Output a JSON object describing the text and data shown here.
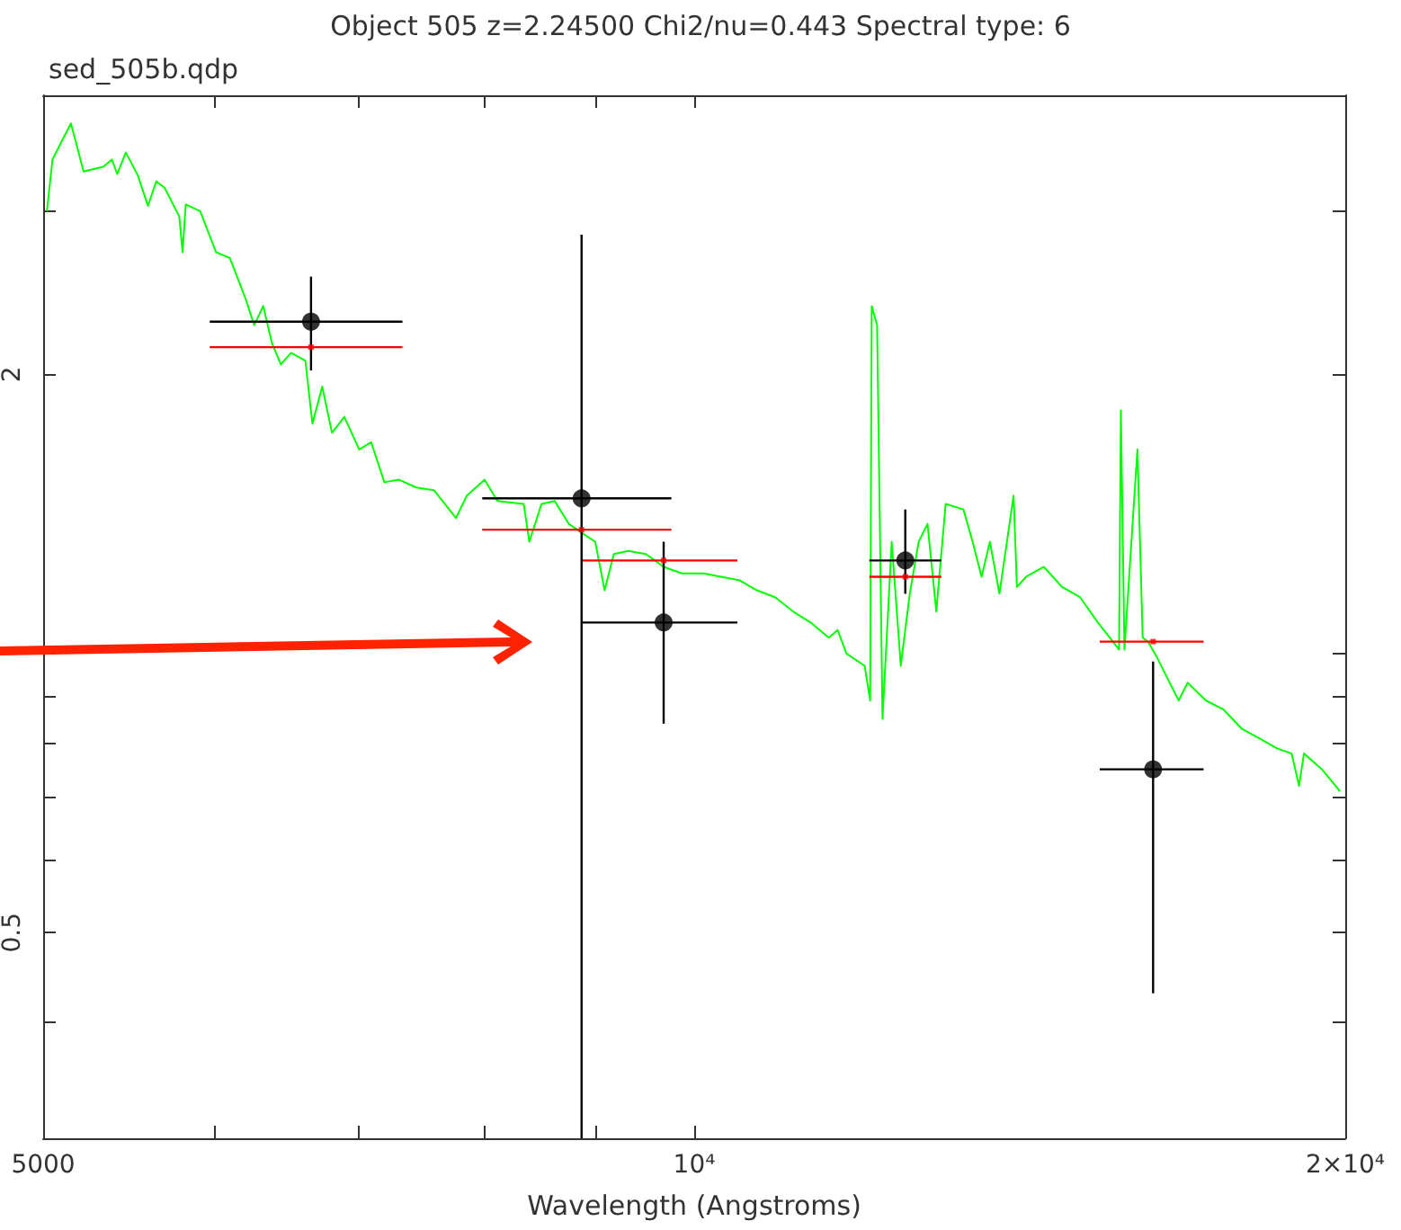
{
  "chart_data": {
    "type": "scatter",
    "title": "Object 505 z=2.24500 Chi2/nu=0.443 Spectral type: 6",
    "subtitle": "sed_505b.qdp",
    "xlabel": "Wavelength (Angstroms)",
    "log": "xy",
    "xlim": [
      5000,
      20000
    ],
    "xticks": [
      5000,
      {
        "value": 6000,
        "label": null
      },
      {
        "value": 7000,
        "label": null
      },
      {
        "value": 8000,
        "label": null
      },
      {
        "value": 9000,
        "label": null
      },
      {
        "value": 10000,
        "label": "10⁴"
      },
      {
        "value": 20000,
        "label": "2×10⁴"
      }
    ],
    "ylim": [
      0.3,
      4
    ],
    "yticks": [
      {
        "value": 0.4,
        "label": null
      },
      0.5,
      {
        "value": 0.6,
        "label": null
      },
      {
        "value": 0.7,
        "label": null
      },
      {
        "value": 0.8,
        "label": null
      },
      {
        "value": 0.9,
        "label": null
      },
      {
        "value": 1,
        "label": null
      },
      2,
      {
        "value": 3,
        "label": null
      }
    ],
    "series": [
      {
        "type": "line",
        "color": "#00ff00",
        "marker": "none",
        "x": [
          5020,
          5050,
          5100,
          5150,
          5220,
          5330,
          5380,
          5410,
          5460,
          5530,
          5590,
          5640,
          5690,
          5780,
          5800,
          5820,
          5910,
          6010,
          6100,
          6200,
          6260,
          6320,
          6380,
          6440,
          6510,
          6610,
          6660,
          6730,
          6800,
          6890,
          7000,
          7090,
          7190,
          7300,
          7440,
          7580,
          7760,
          7850,
          8000,
          8110,
          8340,
          8390,
          8500,
          8620,
          8750,
          8870,
          9000,
          9090,
          9180,
          9320,
          9500,
          9680,
          9870,
          10100,
          10290,
          10490,
          10690,
          10900,
          11110,
          11320,
          11540,
          11650,
          11760,
          11990,
          12060,
          12080,
          12150,
          12220,
          12340,
          12460,
          12580,
          12700,
          12820,
          12940,
          13070,
          13320,
          13450,
          13580,
          13700,
          13840,
          14050,
          14100,
          14240,
          14510,
          14650,
          14790,
          15080,
          15370,
          15720,
          15750,
          15810,
          16030,
          16120,
          16210,
          16370,
          16590,
          16750,
          16910,
          17240,
          17570,
          17910,
          18250,
          18600,
          18890,
          19040,
          19140,
          19510,
          19890
        ],
        "values": [
          3.0,
          3.41,
          3.57,
          3.73,
          3.31,
          3.35,
          3.41,
          3.29,
          3.47,
          3.28,
          3.04,
          3.23,
          3.18,
          2.96,
          2.71,
          3.05,
          3.0,
          2.71,
          2.67,
          2.42,
          2.26,
          2.37,
          2.16,
          2.05,
          2.11,
          2.07,
          1.77,
          1.94,
          1.73,
          1.8,
          1.66,
          1.69,
          1.53,
          1.54,
          1.51,
          1.5,
          1.4,
          1.48,
          1.54,
          1.46,
          1.45,
          1.32,
          1.45,
          1.46,
          1.38,
          1.35,
          1.32,
          1.17,
          1.28,
          1.29,
          1.28,
          1.24,
          1.22,
          1.22,
          1.21,
          1.2,
          1.17,
          1.15,
          1.11,
          1.08,
          1.04,
          1.06,
          1.0,
          0.97,
          0.89,
          2.37,
          2.26,
          0.85,
          1.32,
          0.97,
          1.16,
          1.32,
          1.38,
          1.11,
          1.45,
          1.43,
          1.32,
          1.21,
          1.32,
          1.16,
          1.48,
          1.18,
          1.21,
          1.24,
          1.21,
          1.18,
          1.15,
          1.08,
          1.01,
          1.83,
          1.01,
          1.66,
          1.04,
          1.03,
          0.99,
          0.93,
          0.89,
          0.93,
          0.89,
          0.87,
          0.83,
          0.81,
          0.79,
          0.78,
          0.72,
          0.78,
          0.75,
          0.71
        ]
      },
      {
        "color": "#ff0000",
        "marker": "square",
        "x": [
          6650,
          8870,
          9680,
          12520,
          16300
        ],
        "values": [
          2.14,
          1.36,
          1.26,
          1.21,
          1.03
        ],
        "xerrors": [
          [
            5970,
            7330
          ],
          [
            7980,
            9760
          ],
          [
            8870,
            10470
          ],
          [
            12050,
            13010
          ],
          [
            15400,
            17200
          ]
        ]
      },
      {
        "color": "#000000",
        "marker": "circle",
        "x": [
          6650,
          8870,
          9680,
          12520,
          16300
        ],
        "values": [
          2.28,
          1.47,
          1.08,
          1.26,
          0.75
        ],
        "errors": [
          [
            2.02,
            2.55
          ],
          [
            0.3,
            2.83
          ],
          [
            0.84,
            1.32
          ],
          [
            1.16,
            1.43
          ],
          [
            0.43,
            0.98
          ]
        ],
        "xerrors": [
          [
            5970,
            7330
          ],
          [
            7980,
            9760
          ],
          [
            8870,
            10470
          ],
          [
            12050,
            13010
          ],
          [
            15400,
            17200
          ]
        ]
      }
    ]
  }
}
